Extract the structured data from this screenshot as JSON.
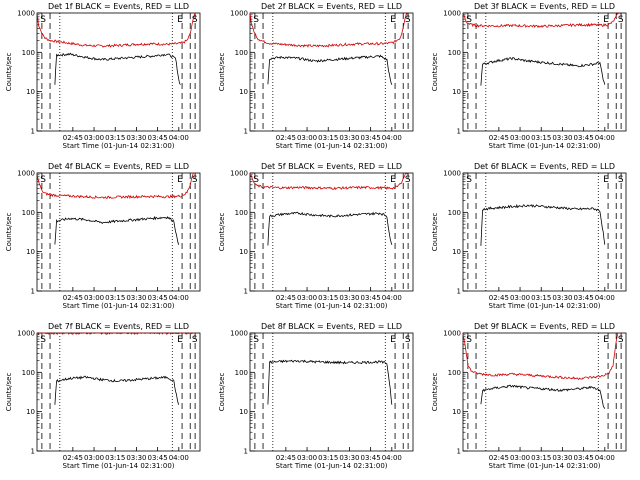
{
  "chart_data": [
    {
      "type": "line",
      "title": "Det 1f BLACK = Events, RED = LLD",
      "xlabel": "Start Time (01-Jun-14 02:31:00)",
      "ylabel": "Counts/sec",
      "yscale": "log",
      "ylim": [
        1,
        1000
      ],
      "xlim": [
        0,
        100
      ],
      "x_ticks": [
        "02:45",
        "03:00",
        "03:15",
        "03:30",
        "03:45",
        "04:00"
      ],
      "y_ticks": [
        "1",
        "10",
        "100",
        "1000"
      ],
      "markers": [
        "S",
        "E",
        "S"
      ],
      "series": [
        {
          "color": "#d00000",
          "x": [
            0,
            1,
            3,
            5,
            8,
            12,
            20,
            30,
            40,
            50,
            60,
            70,
            80,
            85,
            88,
            90,
            92,
            93,
            94,
            95,
            96,
            97
          ],
          "values": [
            1000,
            500,
            300,
            230,
            200,
            190,
            170,
            150,
            145,
            150,
            160,
            165,
            160,
            165,
            170,
            180,
            200,
            240,
            300,
            450,
            800,
            1000
          ]
        },
        {
          "color": "#000000",
          "x": [
            11,
            12,
            20,
            30,
            40,
            50,
            60,
            70,
            80,
            85,
            87,
            88
          ],
          "values": [
            15,
            85,
            90,
            75,
            65,
            70,
            75,
            80,
            90,
            70,
            20,
            15
          ]
        }
      ]
    },
    {
      "type": "line",
      "title": "Det 2f BLACK = Events, RED = LLD",
      "xlabel": "Start Time (01-Jun-14 02:31:00)",
      "ylabel": "Counts/sec",
      "yscale": "log",
      "ylim": [
        1,
        1000
      ],
      "xlim": [
        0,
        100
      ],
      "x_ticks": [
        "02:45",
        "03:00",
        "03:15",
        "03:30",
        "03:45",
        "04:00"
      ],
      "y_ticks": [
        "1",
        "10",
        "100",
        "1000"
      ],
      "markers": [
        "S",
        "E",
        "S"
      ],
      "series": [
        {
          "color": "#d00000",
          "x": [
            0,
            1,
            3,
            5,
            8,
            12,
            20,
            30,
            40,
            50,
            60,
            70,
            80,
            85,
            88,
            90,
            92,
            93,
            94,
            95,
            96,
            97
          ],
          "values": [
            1000,
            500,
            300,
            220,
            190,
            170,
            160,
            150,
            145,
            150,
            160,
            165,
            165,
            170,
            180,
            200,
            230,
            300,
            450,
            700,
            1000,
            1000
          ]
        },
        {
          "color": "#000000",
          "x": [
            11,
            12,
            20,
            30,
            40,
            50,
            60,
            70,
            80,
            84,
            86,
            87
          ],
          "values": [
            15,
            70,
            75,
            70,
            60,
            65,
            70,
            75,
            80,
            65,
            20,
            15
          ]
        }
      ]
    },
    {
      "type": "line",
      "title": "Det 3f BLACK = Events, RED = LLD",
      "xlabel": "Start Time (01-Jun-14 02:31:00)",
      "ylabel": "Counts/sec",
      "yscale": "log",
      "ylim": [
        1,
        1000
      ],
      "xlim": [
        0,
        100
      ],
      "x_ticks": [
        "02:45",
        "03:00",
        "03:15",
        "03:30",
        "03:45",
        "04:00"
      ],
      "y_ticks": [
        "1",
        "10",
        "100",
        "1000"
      ],
      "markers": [
        "S",
        "E",
        "S"
      ],
      "series": [
        {
          "color": "#d00000",
          "x": [
            0,
            1,
            2,
            4,
            8,
            20,
            30,
            40,
            50,
            60,
            70,
            80,
            85,
            88,
            90,
            92,
            94,
            95,
            96,
            97
          ],
          "values": [
            1000,
            800,
            600,
            520,
            480,
            470,
            480,
            470,
            460,
            480,
            500,
            500,
            490,
            500,
            520,
            600,
            800,
            1000,
            1000,
            1000
          ]
        },
        {
          "color": "#000000",
          "x": [
            11,
            12,
            20,
            30,
            40,
            50,
            60,
            70,
            80,
            84,
            86,
            87
          ],
          "values": [
            15,
            50,
            60,
            70,
            60,
            55,
            50,
            45,
            50,
            55,
            20,
            15
          ]
        }
      ]
    },
    {
      "type": "line",
      "title": "Det 4f BLACK = Events, RED = LLD",
      "xlabel": "Start Time (01-Jun-14 02:31:00)",
      "ylabel": "Counts/sec",
      "yscale": "log",
      "ylim": [
        1,
        1000
      ],
      "xlim": [
        0,
        100
      ],
      "x_ticks": [
        "02:45",
        "03:00",
        "03:15",
        "03:30",
        "03:45",
        "04:00"
      ],
      "y_ticks": [
        "1",
        "10",
        "100",
        "1000"
      ],
      "markers": [
        "S",
        "E",
        "S"
      ],
      "series": [
        {
          "color": "#d00000",
          "x": [
            0,
            1,
            3,
            5,
            8,
            12,
            20,
            30,
            40,
            50,
            60,
            70,
            80,
            85,
            88,
            90,
            92,
            94,
            95,
            96,
            97
          ],
          "values": [
            1000,
            600,
            350,
            300,
            280,
            270,
            260,
            250,
            240,
            245,
            250,
            255,
            250,
            255,
            260,
            280,
            320,
            500,
            800,
            1000,
            1000
          ]
        },
        {
          "color": "#000000",
          "x": [
            11,
            12,
            20,
            30,
            40,
            50,
            60,
            70,
            80,
            84,
            86,
            87
          ],
          "values": [
            15,
            60,
            70,
            65,
            55,
            60,
            65,
            70,
            75,
            60,
            20,
            15
          ]
        }
      ]
    },
    {
      "type": "line",
      "title": "Det 5f BLACK = Events, RED = LLD",
      "xlabel": "Start Time (01-Jun-14 02:31:00)",
      "ylabel": "Counts/sec",
      "yscale": "log",
      "ylim": [
        1,
        1000
      ],
      "xlim": [
        0,
        100
      ],
      "x_ticks": [
        "02:45",
        "03:00",
        "03:15",
        "03:30",
        "03:45",
        "04:00"
      ],
      "y_ticks": [
        "1",
        "10",
        "100",
        "1000"
      ],
      "markers": [
        "S",
        "E",
        "S"
      ],
      "series": [
        {
          "color": "#d00000",
          "x": [
            0,
            1,
            2,
            4,
            8,
            20,
            30,
            40,
            50,
            60,
            70,
            80,
            85,
            88,
            90,
            92,
            94,
            95,
            96,
            97
          ],
          "values": [
            1000,
            800,
            600,
            480,
            440,
            420,
            430,
            420,
            410,
            420,
            430,
            420,
            410,
            420,
            440,
            520,
            700,
            900,
            1000,
            1000
          ]
        },
        {
          "color": "#000000",
          "x": [
            11,
            12,
            20,
            30,
            40,
            50,
            60,
            70,
            80,
            84,
            86,
            87
          ],
          "values": [
            15,
            80,
            90,
            95,
            85,
            80,
            85,
            90,
            95,
            80,
            20,
            15
          ]
        }
      ]
    },
    {
      "type": "line",
      "title": "Det 6f BLACK = Events, RED = LLD",
      "xlabel": "Start Time (01-Jun-14 02:31:00)",
      "ylabel": "Counts/sec",
      "yscale": "log",
      "ylim": [
        1,
        1000
      ],
      "xlim": [
        0,
        100
      ],
      "x_ticks": [
        "02:45",
        "03:00",
        "03:15",
        "03:30",
        "03:45",
        "04:00"
      ],
      "y_ticks": [
        "1",
        "10",
        "100",
        "1000"
      ],
      "markers": [
        "S",
        "E",
        "S"
      ],
      "series": [
        {
          "color": "#000000",
          "x": [
            11,
            12,
            20,
            30,
            40,
            50,
            60,
            70,
            80,
            84,
            86,
            87
          ],
          "values": [
            15,
            120,
            130,
            140,
            150,
            140,
            130,
            120,
            125,
            110,
            30,
            15
          ]
        }
      ]
    },
    {
      "type": "line",
      "title": "Det 7f BLACK = Events, RED = LLD",
      "xlabel": "Start Time (01-Jun-14 02:31:00)",
      "ylabel": "Counts/sec",
      "yscale": "log",
      "ylim": [
        1,
        1000
      ],
      "xlim": [
        0,
        100
      ],
      "x_ticks": [
        "02:45",
        "03:00",
        "03:15",
        "03:30",
        "03:45",
        "04:00"
      ],
      "y_ticks": [
        "1",
        "10",
        "100",
        "1000"
      ],
      "markers": [
        "S",
        "E",
        "S"
      ],
      "series": [
        {
          "color": "#d00000",
          "x": [
            0,
            10,
            20,
            30,
            40,
            50,
            60,
            70,
            80,
            90,
            97
          ],
          "values": [
            1000,
            1000,
            1000,
            1000,
            1000,
            1000,
            1000,
            1000,
            1000,
            1000,
            1000
          ]
        },
        {
          "color": "#000000",
          "x": [
            11,
            12,
            20,
            30,
            40,
            50,
            60,
            70,
            80,
            84,
            86,
            87
          ],
          "values": [
            15,
            60,
            70,
            75,
            65,
            60,
            65,
            70,
            75,
            60,
            20,
            15
          ]
        }
      ]
    },
    {
      "type": "line",
      "title": "Det 8f BLACK = Events, RED = LLD",
      "xlabel": "Start Time (01-Jun-14 02:31:00)",
      "ylabel": "Counts/sec",
      "yscale": "log",
      "ylim": [
        1,
        1000
      ],
      "xlim": [
        0,
        100
      ],
      "x_ticks": [
        "02:45",
        "03:00",
        "03:15",
        "03:30",
        "03:45",
        "04:00"
      ],
      "y_ticks": [
        "1",
        "10",
        "100",
        "1000"
      ],
      "markers": [
        "S",
        "E",
        "S"
      ],
      "series": [
        {
          "color": "#000000",
          "x": [
            11,
            12,
            20,
            30,
            40,
            50,
            60,
            70,
            80,
            84,
            86,
            87
          ],
          "values": [
            15,
            180,
            190,
            195,
            185,
            180,
            175,
            180,
            185,
            170,
            40,
            15
          ]
        }
      ]
    },
    {
      "type": "line",
      "title": "Det 9f BLACK = Events, RED = LLD",
      "xlabel": "Start Time (01-Jun-14 02:31:00)",
      "ylabel": "Counts/sec",
      "yscale": "log",
      "ylim": [
        1,
        1000
      ],
      "xlim": [
        0,
        100
      ],
      "x_ticks": [
        "02:45",
        "03:00",
        "03:15",
        "03:30",
        "03:45",
        "04:00"
      ],
      "y_ticks": [
        "1",
        "10",
        "100",
        "1000"
      ],
      "markers": [
        "S",
        "E",
        "S"
      ],
      "series": [
        {
          "color": "#d00000",
          "x": [
            0,
            1,
            2,
            3,
            5,
            8,
            12,
            20,
            30,
            40,
            50,
            60,
            70,
            80,
            85,
            88,
            90,
            92,
            93,
            94,
            95,
            96,
            97
          ],
          "values": [
            1000,
            600,
            300,
            150,
            110,
            95,
            90,
            85,
            90,
            85,
            80,
            75,
            70,
            75,
            80,
            90,
            100,
            150,
            300,
            600,
            1000,
            1000,
            1000
          ]
        },
        {
          "color": "#000000",
          "x": [
            11,
            12,
            20,
            30,
            40,
            50,
            60,
            70,
            80,
            84,
            86,
            87
          ],
          "values": [
            15,
            35,
            40,
            45,
            40,
            38,
            35,
            38,
            42,
            35,
            15,
            12
          ]
        }
      ]
    }
  ]
}
